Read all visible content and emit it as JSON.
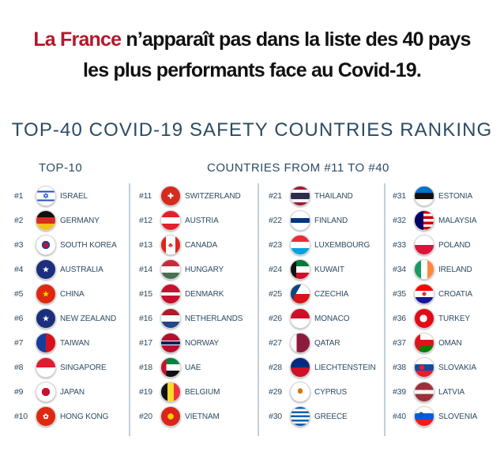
{
  "headline": {
    "line1_red": "La France",
    "line1_rest": " n’apparaît pas dans la liste des 40 pays",
    "line2": "les plus performants face au Covid-19."
  },
  "title": "TOP-40 COVID-19 SAFETY COUNTRIES RANKING",
  "subheadings": {
    "top10": "TOP-10",
    "others": "COUNTRIES FROM #11 TO #40"
  },
  "columns": [
    [
      {
        "rank": "#1",
        "name": "ISRAEL",
        "flag": "israel-flag-icon"
      },
      {
        "rank": "#2",
        "name": "GERMANY",
        "flag": "germany-flag-icon"
      },
      {
        "rank": "#3",
        "name": "SOUTH KOREA",
        "flag": "south-korea-flag-icon"
      },
      {
        "rank": "#4",
        "name": "AUSTRALIA",
        "flag": "australia-flag-icon"
      },
      {
        "rank": "#5",
        "name": "CHINA",
        "flag": "china-flag-icon"
      },
      {
        "rank": "#6",
        "name": "NEW ZEALAND",
        "flag": "new-zealand-flag-icon"
      },
      {
        "rank": "#7",
        "name": "TAIWAN",
        "flag": "taiwan-flag-icon"
      },
      {
        "rank": "#8",
        "name": "SINGAPORE",
        "flag": "singapore-flag-icon"
      },
      {
        "rank": "#9",
        "name": "JAPAN",
        "flag": "japan-flag-icon"
      },
      {
        "rank": "#10",
        "name": "HONG KONG",
        "flag": "hong-kong-flag-icon"
      }
    ],
    [
      {
        "rank": "#11",
        "name": "SWITZERLAND",
        "flag": "switzerland-flag-icon"
      },
      {
        "rank": "#12",
        "name": "AUSTRIA",
        "flag": "austria-flag-icon"
      },
      {
        "rank": "#13",
        "name": "CANADA",
        "flag": "canada-flag-icon"
      },
      {
        "rank": "#14",
        "name": "HUNGARY",
        "flag": "hungary-flag-icon"
      },
      {
        "rank": "#15",
        "name": "DENMARK",
        "flag": "denmark-flag-icon"
      },
      {
        "rank": "#16",
        "name": "NETHERLANDS",
        "flag": "netherlands-flag-icon"
      },
      {
        "rank": "#17",
        "name": "NORWAY",
        "flag": "norway-flag-icon"
      },
      {
        "rank": "#18",
        "name": "UAE",
        "flag": "uae-flag-icon"
      },
      {
        "rank": "#19",
        "name": "BELGIUM",
        "flag": "belgium-flag-icon"
      },
      {
        "rank": "#20",
        "name": "VIETNAM",
        "flag": "vietnam-flag-icon"
      }
    ],
    [
      {
        "rank": "#21",
        "name": "THAILAND",
        "flag": "thailand-flag-icon"
      },
      {
        "rank": "#22",
        "name": "FINLAND",
        "flag": "finland-flag-icon"
      },
      {
        "rank": "#23",
        "name": "LUXEMBOURG",
        "flag": "luxembourg-flag-icon"
      },
      {
        "rank": "#24",
        "name": "KUWAIT",
        "flag": "kuwait-flag-icon"
      },
      {
        "rank": "#25",
        "name": "CZECHIA",
        "flag": "czechia-flag-icon"
      },
      {
        "rank": "#26",
        "name": "MONACO",
        "flag": "monaco-flag-icon"
      },
      {
        "rank": "#27",
        "name": "QATAR",
        "flag": "qatar-flag-icon"
      },
      {
        "rank": "#28",
        "name": "LIECHTENSTEIN",
        "flag": "liechtenstein-flag-icon"
      },
      {
        "rank": "#29",
        "name": "CYPRUS",
        "flag": "cyprus-flag-icon"
      },
      {
        "rank": "#30",
        "name": "GREECE",
        "flag": "greece-flag-icon"
      }
    ],
    [
      {
        "rank": "#31",
        "name": "ESTONIA",
        "flag": "estonia-flag-icon"
      },
      {
        "rank": "#32",
        "name": "MALAYSIA",
        "flag": "malaysia-flag-icon"
      },
      {
        "rank": "#33",
        "name": "POLAND",
        "flag": "poland-flag-icon"
      },
      {
        "rank": "#34",
        "name": "IRELAND",
        "flag": "ireland-flag-icon"
      },
      {
        "rank": "#35",
        "name": "CROATIA",
        "flag": "croatia-flag-icon"
      },
      {
        "rank": "#36",
        "name": "TURKEY",
        "flag": "turkey-flag-icon"
      },
      {
        "rank": "#37",
        "name": "OMAN",
        "flag": "oman-flag-icon"
      },
      {
        "rank": "#38",
        "name": "SLOVAKIA",
        "flag": "slovakia-flag-icon"
      },
      {
        "rank": "#39",
        "name": "LATVIA",
        "flag": "latvia-flag-icon"
      },
      {
        "rank": "#40",
        "name": "SLOVENIA",
        "flag": "slovenia-flag-icon"
      }
    ]
  ]
}
